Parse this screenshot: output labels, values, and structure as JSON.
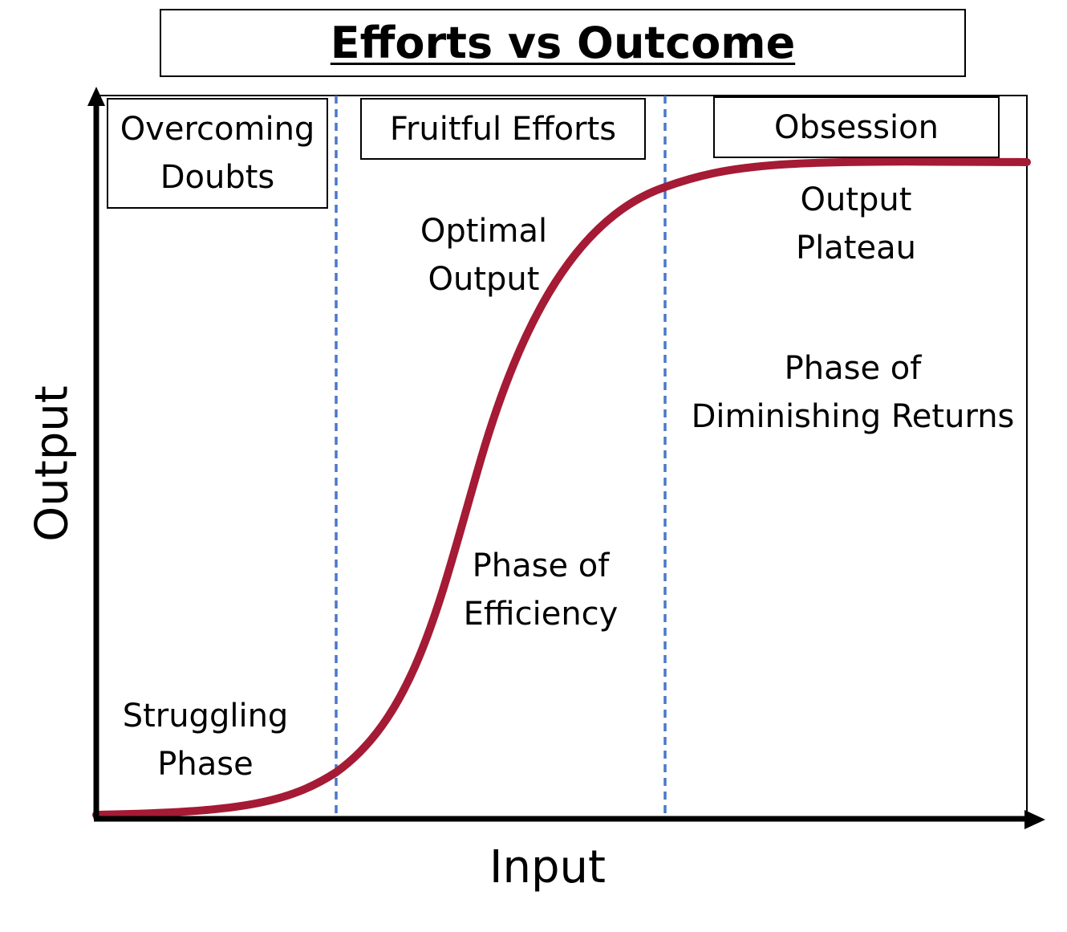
{
  "title": "Efforts vs Outcome",
  "axes": {
    "x_label": "Input",
    "y_label": "Output"
  },
  "phases": [
    {
      "box_label": "Overcoming\nDoubts",
      "curve_label": "Struggling\nPhase"
    },
    {
      "box_label": "Fruitful Efforts",
      "peak_label": "Optimal\nOutput",
      "curve_label": "Phase of\nEfficiency"
    },
    {
      "box_label": "Obsession",
      "peak_label": "Output\nPlateau",
      "curve_label": "Phase of\nDiminishing Returns"
    }
  ],
  "colors": {
    "curve": "#a51a35",
    "divider": "#4a78c8",
    "axis": "#000000"
  }
}
